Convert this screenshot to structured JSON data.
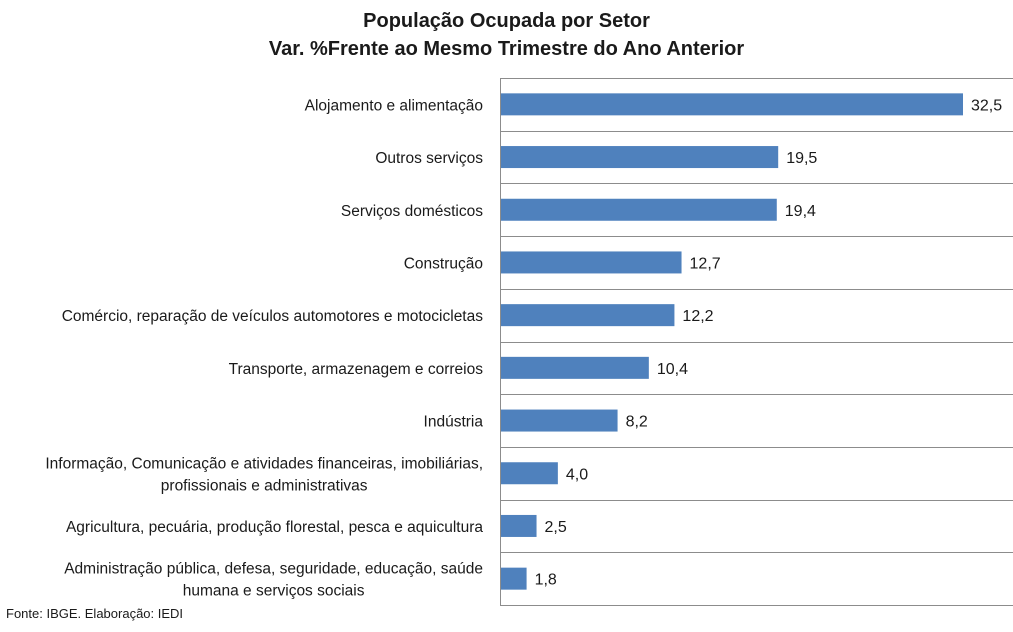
{
  "chart_data": {
    "type": "bar",
    "orientation": "horizontal",
    "title": "População Ocupada por Setor",
    "subtitle": "Var. %Frente ao Mesmo Trimestre do Ano Anterior",
    "categories": [
      "Alojamento e alimentação",
      "Outros serviços",
      "Serviços domésticos",
      "Construção",
      "Comércio, reparação de veículos automotores e motocicletas",
      "Transporte, armazenagem e correios",
      "Indústria",
      "Informação, Comunicação e atividades financeiras, imobiliárias, profissionais e administrativas",
      "Agricultura, pecuária, produção florestal, pesca e aquicultura",
      "Administração pública, defesa, seguridade, educação, saúde humana e serviços sociais"
    ],
    "category_lines": [
      [
        "Alojamento e alimentação"
      ],
      [
        "Outros serviços"
      ],
      [
        "Serviços domésticos"
      ],
      [
        "Construção"
      ],
      [
        "Comércio, reparação de veículos automotores e motocicletas"
      ],
      [
        "Transporte, armazenagem e correios"
      ],
      [
        "Indústria"
      ],
      [
        "Informação, Comunicação e atividades financeiras, imobiliárias,",
        "profissionais e administrativas"
      ],
      [
        "Agricultura, pecuária, produção florestal, pesca e aquicultura"
      ],
      [
        "Administração pública, defesa, seguridade, educação, saúde",
        "humana e serviços sociais"
      ]
    ],
    "values": [
      32.5,
      19.5,
      19.4,
      12.7,
      12.2,
      10.4,
      8.2,
      4.0,
      2.5,
      1.8
    ],
    "value_labels": [
      "32,5",
      "19,5",
      "19,4",
      "12,7",
      "12,2",
      "10,4",
      "8,2",
      "4,0",
      "2,5",
      "1,8"
    ],
    "xlim": [
      0,
      35
    ],
    "grid": "horizontal separators between categories",
    "legend": "none",
    "bar_color": "#4f81bd"
  },
  "footer": "Fonte: IBGE. Elaboração: IEDI"
}
